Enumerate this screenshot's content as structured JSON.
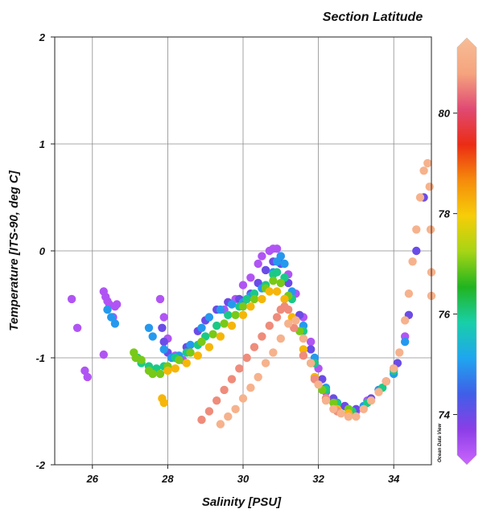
{
  "chart_data": {
    "type": "scatter",
    "title": "",
    "xlabel": "Salinity [PSU]",
    "ylabel": "Temperature [ITS-90, deg C]",
    "xlim": [
      25,
      35
    ],
    "ylim": [
      -2,
      2
    ],
    "xticks": [
      "26",
      "28",
      "30",
      "32",
      "34"
    ],
    "yticks": [
      "2",
      "1",
      "0",
      "-1",
      "-2"
    ],
    "grid": true,
    "colorbar": {
      "title": "Section Latitude",
      "ticks": [
        "80",
        "78",
        "76",
        "74"
      ],
      "range": [
        73.0,
        81.5
      ],
      "colors": [
        "#cc66ff",
        "#8a3ee6",
        "#3f5fe8",
        "#1fa6ef",
        "#18cfa8",
        "#21b41f",
        "#a7d514",
        "#f7cd08",
        "#f58b0b",
        "#eb2c14",
        "#e04a73",
        "#f5a47e",
        "#f7bd96"
      ]
    },
    "watermark": "Ocean Data View",
    "series": [
      {
        "lat": 73.3,
        "points": [
          [
            25.45,
            -0.45
          ],
          [
            25.6,
            -0.72
          ],
          [
            25.8,
            -1.12
          ],
          [
            25.87,
            -1.18
          ],
          [
            26.3,
            -0.38
          ],
          [
            26.35,
            -0.43
          ],
          [
            26.4,
            -0.47
          ],
          [
            26.45,
            -0.5
          ],
          [
            26.6,
            -0.52
          ],
          [
            26.55,
            -0.62
          ],
          [
            26.65,
            -0.5
          ],
          [
            27.8,
            -0.45
          ],
          [
            27.9,
            -0.62
          ],
          [
            28.0,
            -0.82
          ],
          [
            28.2,
            -0.98
          ],
          [
            28.4,
            -1.02
          ],
          [
            26.3,
            -0.97
          ],
          [
            29.5,
            -0.55
          ],
          [
            29.8,
            -0.45
          ],
          [
            30.0,
            -0.32
          ],
          [
            30.2,
            -0.25
          ],
          [
            30.4,
            -0.12
          ],
          [
            30.5,
            -0.05
          ],
          [
            30.7,
            0.0
          ],
          [
            30.8,
            0.02
          ],
          [
            30.9,
            0.02
          ],
          [
            31.0,
            -0.05
          ],
          [
            31.2,
            -0.22
          ],
          [
            31.4,
            -0.4
          ],
          [
            31.6,
            -0.62
          ],
          [
            31.8,
            -0.85
          ],
          [
            32.0,
            -1.1
          ],
          [
            32.2,
            -1.32
          ],
          [
            32.5,
            -1.45
          ],
          [
            32.8,
            -1.52
          ],
          [
            33.0,
            -1.5
          ],
          [
            33.3,
            -1.4
          ],
          [
            33.6,
            -1.3
          ],
          [
            34.0,
            -1.1
          ],
          [
            34.3,
            -0.8
          ]
        ]
      },
      {
        "lat": 74.0,
        "points": [
          [
            27.85,
            -0.72
          ],
          [
            27.9,
            -0.85
          ],
          [
            28.0,
            -0.95
          ],
          [
            28.2,
            -1.0
          ],
          [
            28.5,
            -0.9
          ],
          [
            28.8,
            -0.75
          ],
          [
            29.0,
            -0.65
          ],
          [
            29.3,
            -0.55
          ],
          [
            29.6,
            -0.48
          ],
          [
            29.9,
            -0.45
          ],
          [
            30.2,
            -0.4
          ],
          [
            30.4,
            -0.3
          ],
          [
            30.6,
            -0.18
          ],
          [
            30.8,
            -0.1
          ],
          [
            31.0,
            -0.12
          ],
          [
            31.2,
            -0.3
          ],
          [
            31.5,
            -0.6
          ],
          [
            31.8,
            -0.92
          ],
          [
            32.1,
            -1.2
          ],
          [
            32.4,
            -1.38
          ],
          [
            32.7,
            -1.45
          ],
          [
            33.0,
            -1.48
          ],
          [
            33.4,
            -1.38
          ],
          [
            33.8,
            -1.22
          ],
          [
            34.1,
            -1.05
          ],
          [
            34.4,
            -0.6
          ],
          [
            34.6,
            0.0
          ],
          [
            34.8,
            0.5
          ]
        ]
      },
      {
        "lat": 75.0,
        "points": [
          [
            26.4,
            -0.55
          ],
          [
            26.5,
            -0.62
          ],
          [
            26.6,
            -0.68
          ],
          [
            27.5,
            -0.72
          ],
          [
            27.6,
            -0.8
          ],
          [
            27.9,
            -0.92
          ],
          [
            28.1,
            -1.0
          ],
          [
            28.3,
            -0.98
          ],
          [
            28.6,
            -0.88
          ],
          [
            28.9,
            -0.72
          ],
          [
            29.1,
            -0.62
          ],
          [
            29.4,
            -0.55
          ],
          [
            29.7,
            -0.5
          ],
          [
            30.0,
            -0.48
          ],
          [
            30.2,
            -0.42
          ],
          [
            30.5,
            -0.35
          ],
          [
            30.8,
            -0.2
          ],
          [
            30.9,
            -0.1
          ],
          [
            31.0,
            -0.05
          ],
          [
            31.1,
            -0.12
          ],
          [
            31.3,
            -0.38
          ],
          [
            31.6,
            -0.7
          ],
          [
            31.9,
            -1.0
          ],
          [
            32.2,
            -1.28
          ],
          [
            32.5,
            -1.42
          ],
          [
            32.8,
            -1.48
          ],
          [
            33.2,
            -1.45
          ],
          [
            33.6,
            -1.3
          ],
          [
            34.0,
            -1.15
          ],
          [
            34.3,
            -0.85
          ]
        ]
      },
      {
        "lat": 76.0,
        "points": [
          [
            27.2,
            -1.0
          ],
          [
            27.3,
            -1.05
          ],
          [
            27.5,
            -1.08
          ],
          [
            27.7,
            -1.1
          ],
          [
            27.9,
            -1.08
          ],
          [
            28.2,
            -1.0
          ],
          [
            28.5,
            -0.95
          ],
          [
            28.8,
            -0.88
          ],
          [
            29.0,
            -0.8
          ],
          [
            29.3,
            -0.7
          ],
          [
            29.6,
            -0.6
          ],
          [
            29.9,
            -0.52
          ],
          [
            30.1,
            -0.45
          ],
          [
            30.3,
            -0.4
          ],
          [
            30.6,
            -0.32
          ],
          [
            30.8,
            -0.22
          ],
          [
            30.9,
            -0.2
          ],
          [
            31.1,
            -0.25
          ],
          [
            31.3,
            -0.45
          ],
          [
            31.6,
            -0.75
          ],
          [
            31.9,
            -1.05
          ],
          [
            32.2,
            -1.3
          ],
          [
            32.5,
            -1.43
          ],
          [
            32.9,
            -1.5
          ],
          [
            33.3,
            -1.42
          ],
          [
            33.7,
            -1.28
          ],
          [
            34.0,
            -1.12
          ]
        ]
      },
      {
        "lat": 77.0,
        "points": [
          [
            27.1,
            -0.95
          ],
          [
            27.15,
            -1.0
          ],
          [
            27.3,
            -1.02
          ],
          [
            27.5,
            -1.12
          ],
          [
            27.6,
            -1.15
          ],
          [
            27.8,
            -1.15
          ],
          [
            28.0,
            -1.08
          ],
          [
            28.3,
            -1.02
          ],
          [
            28.6,
            -0.95
          ],
          [
            28.9,
            -0.85
          ],
          [
            29.2,
            -0.78
          ],
          [
            29.5,
            -0.68
          ],
          [
            29.8,
            -0.6
          ],
          [
            30.0,
            -0.52
          ],
          [
            30.3,
            -0.45
          ],
          [
            30.6,
            -0.35
          ],
          [
            30.8,
            -0.28
          ],
          [
            31.0,
            -0.3
          ],
          [
            31.2,
            -0.42
          ],
          [
            31.5,
            -0.75
          ],
          [
            31.8,
            -1.05
          ],
          [
            32.1,
            -1.3
          ],
          [
            32.4,
            -1.42
          ],
          [
            32.8,
            -1.48
          ]
        ]
      },
      {
        "lat": 78.2,
        "points": [
          [
            27.85,
            -1.38
          ],
          [
            27.9,
            -1.42
          ],
          [
            28.0,
            -1.12
          ],
          [
            28.2,
            -1.1
          ],
          [
            28.5,
            -1.05
          ],
          [
            28.8,
            -0.98
          ],
          [
            29.1,
            -0.9
          ],
          [
            29.4,
            -0.8
          ],
          [
            29.7,
            -0.7
          ],
          [
            30.0,
            -0.6
          ],
          [
            30.2,
            -0.52
          ],
          [
            30.5,
            -0.45
          ],
          [
            30.7,
            -0.38
          ],
          [
            30.9,
            -0.38
          ],
          [
            31.1,
            -0.45
          ],
          [
            31.3,
            -0.62
          ],
          [
            31.6,
            -0.92
          ],
          [
            31.9,
            -1.18
          ],
          [
            32.2,
            -1.38
          ],
          [
            32.5,
            -1.48
          ],
          [
            32.8,
            -1.52
          ]
        ]
      },
      {
        "lat": 80.6,
        "points": [
          [
            28.9,
            -1.58
          ],
          [
            29.1,
            -1.5
          ],
          [
            29.3,
            -1.4
          ],
          [
            29.5,
            -1.3
          ],
          [
            29.7,
            -1.2
          ],
          [
            29.9,
            -1.1
          ],
          [
            30.1,
            -1.0
          ],
          [
            30.3,
            -0.9
          ],
          [
            30.5,
            -0.8
          ],
          [
            30.7,
            -0.7
          ],
          [
            30.9,
            -0.62
          ],
          [
            31.0,
            -0.55
          ],
          [
            31.1,
            -0.52
          ],
          [
            31.2,
            -0.55
          ],
          [
            31.35,
            -0.72
          ],
          [
            31.6,
            -0.98
          ],
          [
            31.9,
            -1.2
          ],
          [
            32.2,
            -1.38
          ],
          [
            32.5,
            -1.5
          ],
          [
            32.8,
            -1.55
          ]
        ]
      },
      {
        "lat": 81.2,
        "points": [
          [
            29.4,
            -1.62
          ],
          [
            29.6,
            -1.55
          ],
          [
            29.8,
            -1.48
          ],
          [
            30.0,
            -1.38
          ],
          [
            30.2,
            -1.28
          ],
          [
            30.4,
            -1.18
          ],
          [
            30.6,
            -1.05
          ],
          [
            30.8,
            -0.95
          ],
          [
            31.0,
            -0.82
          ],
          [
            31.2,
            -0.68
          ],
          [
            31.4,
            -0.65
          ],
          [
            31.6,
            -0.82
          ],
          [
            31.8,
            -1.05
          ],
          [
            32.0,
            -1.25
          ],
          [
            32.2,
            -1.4
          ],
          [
            32.4,
            -1.48
          ],
          [
            32.6,
            -1.52
          ],
          [
            32.8,
            -1.55
          ],
          [
            33.0,
            -1.55
          ],
          [
            33.2,
            -1.48
          ],
          [
            33.4,
            -1.4
          ],
          [
            33.6,
            -1.32
          ],
          [
            33.8,
            -1.22
          ],
          [
            34.0,
            -1.1
          ],
          [
            34.15,
            -0.95
          ],
          [
            34.3,
            -0.65
          ],
          [
            34.4,
            -0.4
          ],
          [
            34.5,
            -0.1
          ],
          [
            34.6,
            0.2
          ],
          [
            34.7,
            0.5
          ],
          [
            34.8,
            0.75
          ],
          [
            34.9,
            0.82
          ],
          [
            34.95,
            0.6
          ],
          [
            34.98,
            0.2
          ],
          [
            35.0,
            -0.2
          ],
          [
            35.0,
            -0.42
          ]
        ]
      }
    ]
  }
}
